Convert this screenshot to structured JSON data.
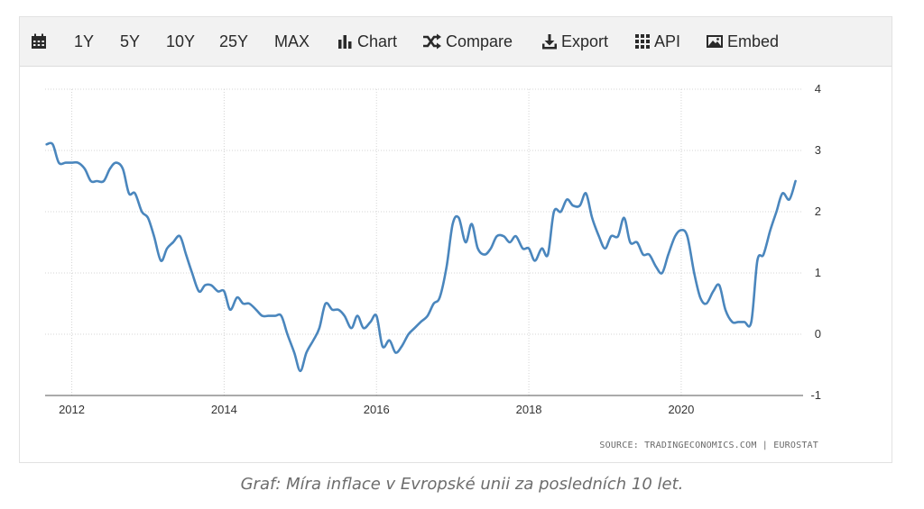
{
  "toolbar": {
    "items": [
      {
        "id": "calendar",
        "icon": "calendar-icon",
        "label": ""
      },
      {
        "id": "1y",
        "icon": "",
        "label": "1Y"
      },
      {
        "id": "5y",
        "icon": "",
        "label": "5Y"
      },
      {
        "id": "10y",
        "icon": "",
        "label": "10Y"
      },
      {
        "id": "25y",
        "icon": "",
        "label": "25Y"
      },
      {
        "id": "max",
        "icon": "",
        "label": "MAX"
      },
      {
        "id": "chart",
        "icon": "bar-chart-icon",
        "label": "Chart"
      },
      {
        "id": "compare",
        "icon": "shuffle-icon",
        "label": "Compare"
      },
      {
        "id": "export",
        "icon": "download-icon",
        "label": "Export"
      },
      {
        "id": "api",
        "icon": "grid-icon",
        "label": "API"
      },
      {
        "id": "embed",
        "icon": "image-icon",
        "label": "Embed"
      }
    ]
  },
  "source_text": "SOURCE: TRADINGECONOMICS.COM | EUROSTAT",
  "caption": "Graf: Míra inflace v Evropské unii za posledních 10 let.",
  "chart_data": {
    "type": "line",
    "title": "",
    "xlabel": "",
    "ylabel": "",
    "x_ticks": [
      "2012",
      "2014",
      "2016",
      "2018",
      "2020"
    ],
    "y_ticks": [
      "4",
      "3",
      "2",
      "1",
      "0",
      "-1"
    ],
    "xlim": [
      2011.65,
      2021.6
    ],
    "ylim": [
      -1,
      4
    ],
    "grid": true,
    "line_color": "#4a86bd",
    "series": [
      {
        "name": "",
        "x": [
          2011.67,
          2011.75,
          2011.83,
          2011.92,
          2012.0,
          2012.08,
          2012.17,
          2012.25,
          2012.33,
          2012.42,
          2012.5,
          2012.58,
          2012.67,
          2012.75,
          2012.83,
          2012.92,
          2013.0,
          2013.08,
          2013.17,
          2013.25,
          2013.33,
          2013.42,
          2013.5,
          2013.58,
          2013.67,
          2013.75,
          2013.83,
          2013.92,
          2014.0,
          2014.08,
          2014.17,
          2014.25,
          2014.33,
          2014.42,
          2014.5,
          2014.58,
          2014.67,
          2014.75,
          2014.83,
          2014.92,
          2015.0,
          2015.08,
          2015.17,
          2015.25,
          2015.33,
          2015.42,
          2015.5,
          2015.58,
          2015.67,
          2015.75,
          2015.83,
          2015.92,
          2016.0,
          2016.08,
          2016.17,
          2016.25,
          2016.33,
          2016.42,
          2016.5,
          2016.58,
          2016.67,
          2016.75,
          2016.83,
          2016.92,
          2017.0,
          2017.08,
          2017.17,
          2017.25,
          2017.33,
          2017.42,
          2017.5,
          2017.58,
          2017.67,
          2017.75,
          2017.83,
          2017.92,
          2018.0,
          2018.08,
          2018.17,
          2018.25,
          2018.33,
          2018.42,
          2018.5,
          2018.58,
          2018.67,
          2018.75,
          2018.83,
          2018.92,
          2019.0,
          2019.08,
          2019.17,
          2019.25,
          2019.33,
          2019.42,
          2019.5,
          2019.58,
          2019.67,
          2019.75,
          2019.83,
          2019.92,
          2020.0,
          2020.08,
          2020.17,
          2020.25,
          2020.33,
          2020.42,
          2020.5,
          2020.58,
          2020.67,
          2020.75,
          2020.83,
          2020.92,
          2021.0,
          2021.08,
          2021.17,
          2021.25,
          2021.33,
          2021.42,
          2021.5
        ],
        "values": [
          3.1,
          3.1,
          2.8,
          2.8,
          2.8,
          2.8,
          2.7,
          2.5,
          2.5,
          2.5,
          2.7,
          2.8,
          2.7,
          2.3,
          2.3,
          2.0,
          1.9,
          1.6,
          1.2,
          1.4,
          1.5,
          1.6,
          1.3,
          1.0,
          0.7,
          0.8,
          0.8,
          0.7,
          0.7,
          0.4,
          0.6,
          0.5,
          0.5,
          0.4,
          0.3,
          0.3,
          0.3,
          0.3,
          0.0,
          -0.3,
          -0.6,
          -0.3,
          -0.1,
          0.1,
          0.5,
          0.4,
          0.4,
          0.3,
          0.1,
          0.3,
          0.1,
          0.2,
          0.3,
          -0.2,
          -0.1,
          -0.3,
          -0.2,
          0.0,
          0.1,
          0.2,
          0.3,
          0.5,
          0.6,
          1.1,
          1.8,
          1.9,
          1.5,
          1.8,
          1.4,
          1.3,
          1.4,
          1.6,
          1.6,
          1.5,
          1.6,
          1.4,
          1.4,
          1.2,
          1.4,
          1.3,
          2.0,
          2.0,
          2.2,
          2.1,
          2.1,
          2.3,
          1.9,
          1.6,
          1.4,
          1.6,
          1.6,
          1.9,
          1.5,
          1.5,
          1.3,
          1.3,
          1.1,
          1.0,
          1.3,
          1.6,
          1.7,
          1.6,
          1.0,
          0.6,
          0.5,
          0.7,
          0.8,
          0.4,
          0.2,
          0.2,
          0.2,
          0.2,
          1.2,
          1.3,
          1.7,
          2.0,
          2.3,
          2.2,
          2.5
        ]
      }
    ]
  }
}
